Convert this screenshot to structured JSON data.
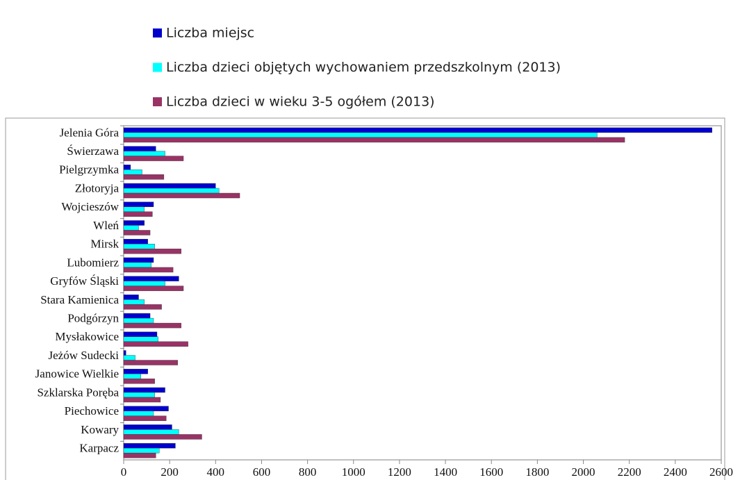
{
  "chart_data": {
    "type": "bar",
    "orientation": "horizontal",
    "categories": [
      "Jelenia Góra",
      "Świerzawa",
      "Pielgrzymka",
      "Złotoryja",
      "Wojcieszów",
      "Wleń",
      "Mirsk",
      "Lubomierz",
      "Gryfów Śląski",
      "Stara Kamienica",
      "Podgórzyn",
      "Mysłakowice",
      "Jeżów Sudecki",
      "Janowice Wielkie",
      "Szklarska Poręba",
      "Piechowice",
      "Kowary",
      "Karpacz"
    ],
    "series": [
      {
        "name": "Liczba miejsc",
        "color": "#0000cc",
        "values": [
          2560,
          140,
          30,
          400,
          130,
          90,
          105,
          130,
          240,
          65,
          115,
          145,
          10,
          105,
          180,
          195,
          210,
          225
        ]
      },
      {
        "name": "Liczba dzieci objętych wychowaniem przedszkolnym (2013)",
        "color": "#00ffff",
        "values": [
          2060,
          180,
          80,
          415,
          90,
          65,
          135,
          120,
          180,
          90,
          130,
          150,
          50,
          75,
          135,
          130,
          240,
          155
        ]
      },
      {
        "name": "Liczba dzieci w wieku 3-5 ogółem (2013)",
        "color": "#993366",
        "values": [
          2180,
          260,
          175,
          505,
          125,
          115,
          250,
          215,
          260,
          165,
          250,
          280,
          235,
          135,
          160,
          185,
          340,
          140
        ]
      }
    ],
    "xlim": [
      0,
      2600
    ],
    "xticks": [
      0,
      200,
      400,
      600,
      800,
      1000,
      1200,
      1400,
      1600,
      1800,
      2000,
      2200,
      2400,
      2600
    ],
    "grid": false,
    "legend": "top"
  }
}
